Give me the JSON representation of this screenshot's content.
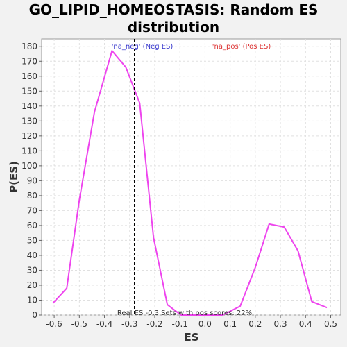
{
  "chart_data": {
    "type": "line",
    "title_line1": "GO_LIPID_HOMEOSTASIS: Random ES",
    "title_line2": "distribution",
    "xlabel": "ES",
    "ylabel": "P(ES)",
    "xlim": [
      -0.65,
      0.54
    ],
    "ylim": [
      0,
      185
    ],
    "x_ticks": [
      -0.6,
      -0.5,
      -0.4,
      -0.3,
      -0.2,
      -0.1,
      0.0,
      0.1,
      0.2,
      0.3,
      0.4,
      0.5
    ],
    "x_tick_labels": [
      "-0.6",
      "-0.5",
      "-0.4",
      "-0.3",
      "-0.2",
      "-0.1",
      "0.0",
      "0.1",
      "0.2",
      "0.3",
      "0.4",
      "0.5"
    ],
    "y_ticks": [
      0,
      10,
      20,
      30,
      40,
      50,
      60,
      70,
      80,
      90,
      100,
      110,
      120,
      130,
      140,
      150,
      160,
      170,
      180
    ],
    "grid": true,
    "series": [
      {
        "color": "#ee44ee",
        "x": [
          -0.605,
          -0.55,
          -0.5,
          -0.44,
          -0.37,
          -0.315,
          -0.26,
          -0.205,
          -0.15,
          -0.095,
          -0.04,
          0.015,
          0.07,
          0.14,
          0.2,
          0.255,
          0.315,
          0.37,
          0.425,
          0.485
        ],
        "y": [
          8,
          18,
          77,
          136,
          177,
          166,
          142,
          52,
          7,
          0,
          0,
          0,
          0,
          6,
          32,
          61,
          59,
          43,
          9,
          5
        ]
      }
    ],
    "real_es": -0.28,
    "annotations": {
      "neg_label": "'na_neg' (Neg ES)",
      "neg_color": "#3333cc",
      "pos_label": "'na_pos' (Pos ES)",
      "pos_color": "#dd3333",
      "bottom_text": "Real ES -0.3   Sets with pos scores: 22%"
    }
  }
}
